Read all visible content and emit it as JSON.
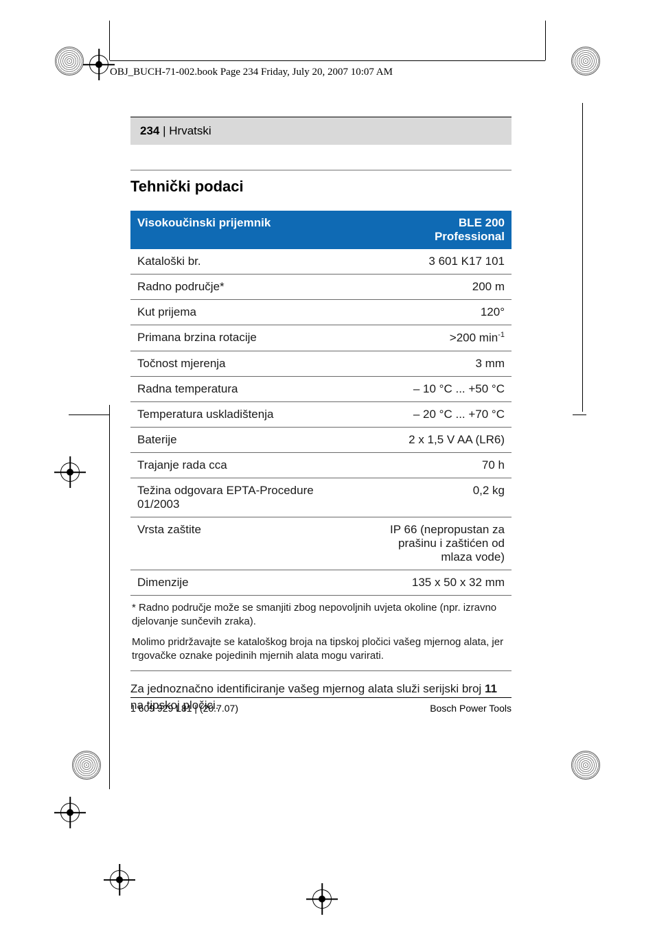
{
  "doc_header": "OBJ_BUCH-71-002.book  Page 234  Friday, July 20, 2007  10:07 AM",
  "page_bar": {
    "number": "234",
    "sep": " | ",
    "lang": "Hrvatski"
  },
  "section_title": "Tehnički podaci",
  "table": {
    "head_left": "Visokoučinski prijemnik",
    "head_right_line1": "BLE 200",
    "head_right_line2": "Professional",
    "rows": [
      {
        "label": "Kataloški br.",
        "value": "3 601 K17 101"
      },
      {
        "label": "Radno područje*",
        "value": "200 m"
      },
      {
        "label": "Kut prijema",
        "value": "120°"
      },
      {
        "label": "Primana brzina rotacije",
        "value_html": ">200 min<span class=\"sup\">-1</span>"
      },
      {
        "label": "Točnost mjerenja",
        "value": "3 mm"
      },
      {
        "label": "Radna temperatura",
        "value": "– 10 °C ... +50 °C"
      },
      {
        "label": "Temperatura uskladištenja",
        "value": "– 20 °C ... +70 °C"
      },
      {
        "label": "Baterije",
        "value": "2 x 1,5 V AA (LR6)"
      },
      {
        "label": "Trajanje rada cca",
        "value": "70 h"
      },
      {
        "label": "Težina odgovara EPTA-Procedure 01/2003",
        "value": "0,2 kg"
      },
      {
        "label": "Vrsta zaštite",
        "value": "IP 66 (nepropustan za prašinu i zaštićen od mlaza vode)",
        "wrap": true
      },
      {
        "label": "Dimenzije",
        "value": "135 x 50 x 32 mm"
      }
    ]
  },
  "notes": {
    "p1": "* Radno područje može se smanjiti zbog nepovoljnih uvjeta okoline (npr. izravno djelovanje sunčevih zraka).",
    "p2": "Molimo pridržavajte se kataloškog broja na tipskoj pločici vašeg mjernog alata, jer trgovačke oznake pojedinih mjernih alata mogu varirati."
  },
  "aftertext": {
    "pre": "Za jednoznačno identificiranje vašeg mjernog alata služi serijski broj ",
    "bold": "11",
    "post": " na tipskoj pločici."
  },
  "footer": {
    "left": "1 609 929 L81 | (20.7.07)",
    "right": "Bosch Power Tools"
  },
  "colors": {
    "header_bg": "#0f6ab4",
    "page_bar_bg": "#d9d9d9",
    "rule_gray": "#b5b5b5",
    "row_border": "#6a6a6a"
  }
}
